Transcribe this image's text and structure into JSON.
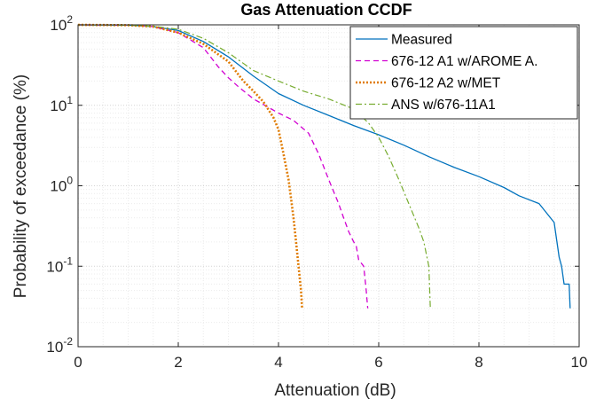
{
  "chart_data": {
    "type": "line",
    "title": "Gas Attenuation CCDF",
    "xlabel": "Attenuation (dB)",
    "ylabel": "Probability of exceedance (%)",
    "xlim": [
      0,
      10
    ],
    "ylim": [
      0.01,
      100
    ],
    "yscale": "log",
    "xticks": [
      0,
      2,
      4,
      6,
      8,
      10
    ],
    "yticks": [
      {
        "value": 0.01,
        "base": "10",
        "exp": "-2"
      },
      {
        "value": 0.1,
        "base": "10",
        "exp": "-1"
      },
      {
        "value": 1,
        "base": "10",
        "exp": "0"
      },
      {
        "value": 10,
        "base": "10",
        "exp": "1"
      },
      {
        "value": 100,
        "base": "10",
        "exp": "2"
      }
    ],
    "grid": true,
    "legend_position": "top-right",
    "series": [
      {
        "name": "Measured",
        "color": "#0072BD",
        "dash": "solid",
        "points": [
          [
            0,
            100
          ],
          [
            1,
            99
          ],
          [
            1.5,
            95
          ],
          [
            2,
            85
          ],
          [
            2.5,
            62
          ],
          [
            3,
            40
          ],
          [
            3.5,
            23
          ],
          [
            4,
            14
          ],
          [
            4.5,
            10
          ],
          [
            5,
            7.5
          ],
          [
            5.5,
            5.6
          ],
          [
            6,
            4.3
          ],
          [
            6.5,
            3.2
          ],
          [
            7,
            2.3
          ],
          [
            7.5,
            1.7
          ],
          [
            8,
            1.3
          ],
          [
            8.5,
            0.95
          ],
          [
            8.8,
            0.75
          ],
          [
            9.2,
            0.6
          ],
          [
            9.5,
            0.35
          ],
          [
            9.6,
            0.13
          ],
          [
            9.65,
            0.1
          ],
          [
            9.7,
            0.06
          ],
          [
            9.8,
            0.06
          ],
          [
            9.82,
            0.03
          ]
        ]
      },
      {
        "name": "676-12 A1 w/AROME A.",
        "color": "#D100D1",
        "dash": "dashed",
        "points": [
          [
            0,
            100
          ],
          [
            1,
            99
          ],
          [
            1.5,
            95
          ],
          [
            2,
            80
          ],
          [
            2.5,
            52
          ],
          [
            2.8,
            30
          ],
          [
            3,
            22
          ],
          [
            3.2,
            17
          ],
          [
            3.5,
            12
          ],
          [
            4,
            8
          ],
          [
            4.3,
            6.5
          ],
          [
            4.6,
            4.5
          ],
          [
            4.8,
            2.5
          ],
          [
            5,
            1.2
          ],
          [
            5.2,
            0.6
          ],
          [
            5.3,
            0.4
          ],
          [
            5.4,
            0.27
          ],
          [
            5.5,
            0.2
          ],
          [
            5.55,
            0.18
          ],
          [
            5.6,
            0.12
          ],
          [
            5.7,
            0.1
          ],
          [
            5.75,
            0.05
          ],
          [
            5.78,
            0.03
          ]
        ]
      },
      {
        "name": "676-12 A2 w/MET",
        "color": "#E07B00",
        "dash": "dotted",
        "points": [
          [
            0,
            100
          ],
          [
            1,
            99
          ],
          [
            1.5,
            95
          ],
          [
            2,
            80
          ],
          [
            2.5,
            58
          ],
          [
            3,
            35
          ],
          [
            3.3,
            20
          ],
          [
            3.5,
            15
          ],
          [
            3.7,
            11
          ],
          [
            3.9,
            7
          ],
          [
            4,
            5
          ],
          [
            4.1,
            2.5
          ],
          [
            4.2,
            1.2
          ],
          [
            4.25,
            0.7
          ],
          [
            4.3,
            0.4
          ],
          [
            4.35,
            0.2
          ],
          [
            4.4,
            0.1
          ],
          [
            4.45,
            0.05
          ],
          [
            4.47,
            0.03
          ]
        ]
      },
      {
        "name": "ANS  w/676-11A1",
        "color": "#77AC30",
        "dash": "dashdot",
        "points": [
          [
            0,
            100
          ],
          [
            1,
            99
          ],
          [
            1.5,
            96
          ],
          [
            2,
            88
          ],
          [
            2.5,
            68
          ],
          [
            3,
            45
          ],
          [
            3.5,
            27
          ],
          [
            4,
            20
          ],
          [
            4.5,
            15
          ],
          [
            5,
            12
          ],
          [
            5.5,
            9
          ],
          [
            5.8,
            6
          ],
          [
            6,
            4
          ],
          [
            6.2,
            2.3
          ],
          [
            6.4,
            1.2
          ],
          [
            6.6,
            0.6
          ],
          [
            6.8,
            0.3
          ],
          [
            6.9,
            0.2
          ],
          [
            7.0,
            0.1
          ],
          [
            7.03,
            0.03
          ]
        ]
      }
    ]
  }
}
